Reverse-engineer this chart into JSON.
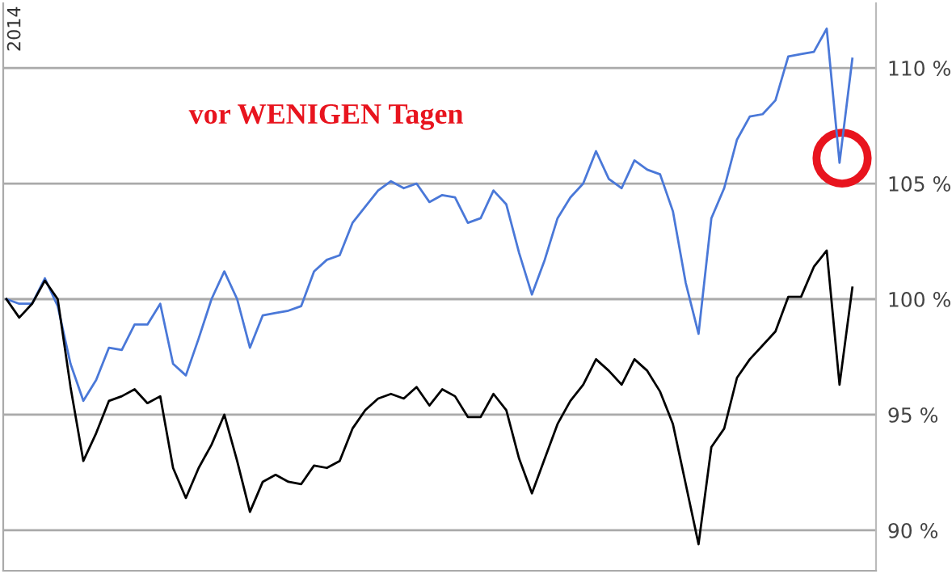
{
  "chart_data": {
    "type": "line",
    "categories": [
      null,
      null,
      null,
      null,
      null,
      null,
      null,
      null,
      null,
      null,
      null,
      null,
      null,
      null,
      null,
      null,
      null,
      null,
      null,
      null,
      null,
      null,
      null,
      null,
      null,
      null,
      null,
      null,
      null,
      null,
      null,
      null,
      null,
      null,
      null,
      null,
      null,
      null,
      null,
      null,
      null,
      null,
      null,
      null,
      null,
      null,
      null,
      null,
      null,
      null,
      null,
      null,
      null,
      null,
      null,
      null,
      null,
      null,
      null,
      null,
      null,
      null,
      null,
      null,
      null,
      null,
      null
    ],
    "series": [
      {
        "color": "#4a78d8",
        "values": [
          100.0,
          99.8,
          99.8,
          100.9,
          99.7,
          97.2,
          95.6,
          96.5,
          97.9,
          97.8,
          98.9,
          98.9,
          99.8,
          97.2,
          96.7,
          98.3,
          100.0,
          101.2,
          100.0,
          97.9,
          99.3,
          99.4,
          99.5,
          99.7,
          101.2,
          101.7,
          101.9,
          103.3,
          104.0,
          104.7,
          105.1,
          104.8,
          105.0,
          104.2,
          104.5,
          104.4,
          103.3,
          103.5,
          104.7,
          104.1,
          102.0,
          100.2,
          101.7,
          103.5,
          104.4,
          105.0,
          106.4,
          105.2,
          104.8,
          106.0,
          105.6,
          105.4,
          103.8,
          100.7,
          98.5,
          103.5,
          104.8,
          106.9,
          107.9,
          108.0,
          108.6,
          110.5,
          110.6,
          110.7,
          111.7,
          105.9,
          110.4
        ]
      },
      {
        "color": "#000000",
        "values": [
          100.0,
          99.2,
          99.8,
          100.8,
          100.0,
          96.2,
          93.0,
          94.2,
          95.6,
          95.8,
          96.1,
          95.5,
          95.8,
          92.7,
          91.4,
          92.7,
          93.7,
          95.0,
          93.0,
          90.8,
          92.1,
          92.4,
          92.1,
          92.0,
          92.8,
          92.7,
          93.0,
          94.4,
          95.2,
          95.7,
          95.9,
          95.7,
          96.2,
          95.4,
          96.1,
          95.8,
          94.9,
          94.9,
          95.9,
          95.2,
          93.1,
          91.6,
          93.1,
          94.6,
          95.6,
          96.3,
          97.4,
          96.9,
          96.3,
          97.4,
          96.9,
          96.0,
          94.6,
          92.0,
          89.4,
          93.6,
          94.4,
          96.6,
          97.4,
          98.0,
          98.6,
          100.1,
          100.1,
          101.4,
          102.1,
          96.3,
          100.5
        ]
      }
    ],
    "ylim": [
      88.25,
      112.8
    ],
    "yticks": [
      {
        "value": 90,
        "label": "90 %"
      },
      {
        "value": 95,
        "label": "95 %"
      },
      {
        "value": 100,
        "label": "100 %"
      },
      {
        "value": 105,
        "label": "105 %"
      },
      {
        "value": 110,
        "label": "110 %"
      }
    ],
    "grid": "y",
    "tick_labels": "y",
    "marker": "none",
    "line_style": "solid",
    "annotations": [
      "2014",
      "vor WENIGEN Tagen"
    ]
  }
}
